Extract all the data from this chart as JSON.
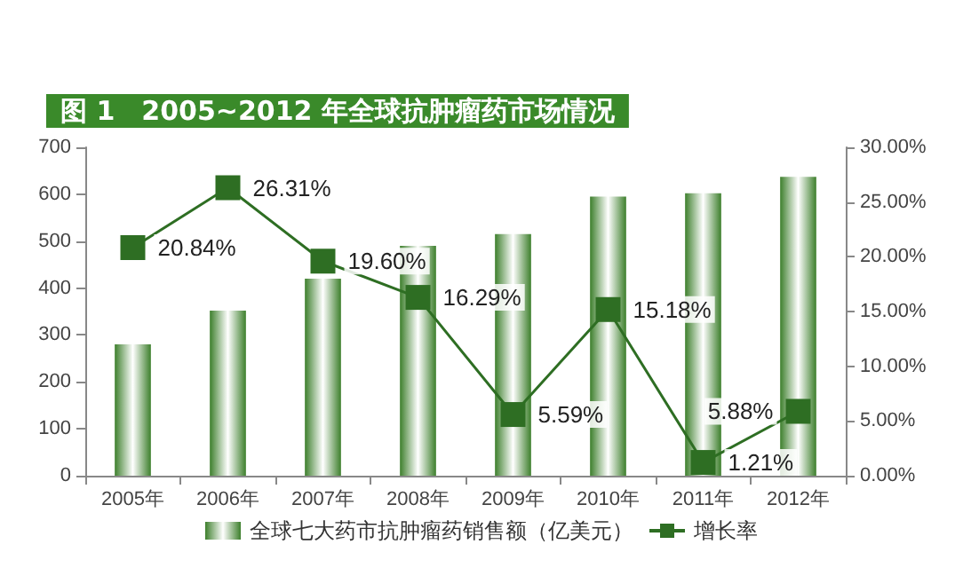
{
  "chart_data": {
    "type": "bar",
    "title": "图 1　2005~2012 年全球抗肿瘤药市场情况",
    "categories": [
      "2005年",
      "2006年",
      "2007年",
      "2008年",
      "2009年",
      "2010年",
      "2011年",
      "2012年"
    ],
    "series": [
      {
        "name": "全球七大药市抗肿瘤药销售额（亿美元）",
        "color": "#3d7f2c",
        "values": [
          280,
          352,
          420,
          490,
          515,
          595,
          602,
          637
        ]
      },
      {
        "name": "增长率",
        "type": "line",
        "axis": "y2",
        "color": "#2e6e23",
        "marker": "square",
        "values": [
          20.84,
          26.31,
          19.6,
          16.29,
          5.59,
          15.18,
          1.21,
          5.88
        ],
        "value_labels": [
          "20.84%",
          "26.31%",
          "19.60%",
          "16.29%",
          "5.59%",
          "15.18%",
          "1.21%",
          "5.88%"
        ]
      }
    ],
    "ylim": [
      0,
      700
    ],
    "yticks": [
      0,
      100,
      200,
      300,
      400,
      500,
      600,
      700
    ],
    "y2lim": [
      0,
      30
    ],
    "y2ticks": [
      {
        "value": 0,
        "label": "0.00%"
      },
      {
        "value": 5,
        "label": "5.00%"
      },
      {
        "value": 10,
        "label": "10.00%"
      },
      {
        "value": 15,
        "label": "15.00%"
      },
      {
        "value": 20,
        "label": "20.00%"
      },
      {
        "value": 25,
        "label": "25.00%"
      },
      {
        "value": 30,
        "label": "30.00%"
      }
    ],
    "grid": false,
    "legend": "bottom"
  }
}
